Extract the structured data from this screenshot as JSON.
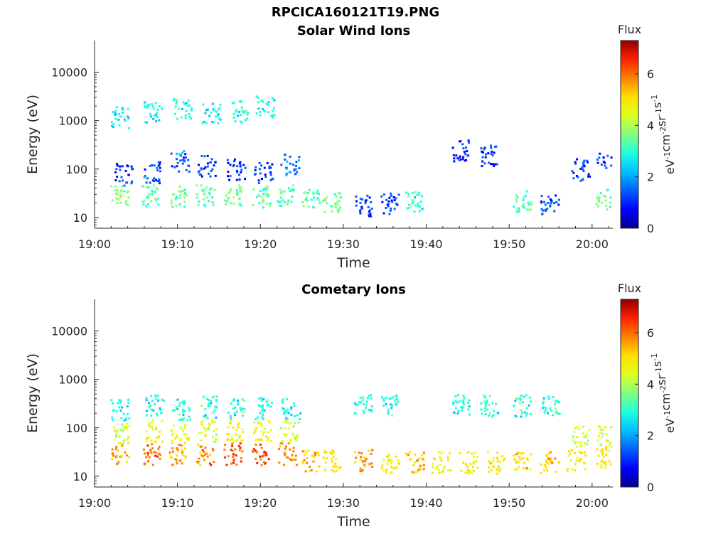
{
  "figure_title": "RPCICA160121T19.PNG",
  "colormap": [
    "#00008f",
    "#0000ff",
    "#0060ff",
    "#00bfff",
    "#20ffdf",
    "#80ff80",
    "#dfff20",
    "#ffdf00",
    "#ff8000",
    "#ff2000",
    "#8f0000"
  ],
  "chart_data": [
    {
      "type": "heatmap",
      "title": "Solar Wind Ions",
      "xlabel": "Time",
      "ylabel": "Energy (eV)",
      "x_ticks": [
        "19:00",
        "19:10",
        "19:20",
        "19:30",
        "19:40",
        "19:50",
        "20:00"
      ],
      "x_range_minutes": [
        0,
        62.5
      ],
      "y_scale": "log",
      "y_ticks": [
        "10",
        "100",
        "1000",
        "10000"
      ],
      "y_range": [
        6,
        45000
      ],
      "colorbar": {
        "title": "Flux",
        "label": "eV-1cm-2sr-1s-1",
        "ticks": [
          "0",
          "2",
          "4",
          "6"
        ],
        "range": [
          0,
          7.3
        ]
      },
      "blocks": [
        {
          "t": 3,
          "e": 30,
          "flux": 3.6
        },
        {
          "t": 3.5,
          "e": 80,
          "flux": 1.2
        },
        {
          "t": 3,
          "e": 1200,
          "flux": 2.6
        },
        {
          "t": 6.5,
          "e": 30,
          "flux": 3.2
        },
        {
          "t": 6.8,
          "e": 90,
          "flux": 1.4
        },
        {
          "t": 7,
          "e": 1500,
          "flux": 2.8
        },
        {
          "t": 10,
          "e": 28,
          "flux": 3.5
        },
        {
          "t": 10.2,
          "e": 150,
          "flux": 1.5
        },
        {
          "t": 10.5,
          "e": 1800,
          "flux": 3.0
        },
        {
          "t": 13.3,
          "e": 30,
          "flux": 3.4
        },
        {
          "t": 13.5,
          "e": 120,
          "flux": 1.3
        },
        {
          "t": 14,
          "e": 1500,
          "flux": 2.7
        },
        {
          "t": 16.6,
          "e": 30,
          "flux": 3.6
        },
        {
          "t": 17,
          "e": 100,
          "flux": 1.1
        },
        {
          "t": 17.5,
          "e": 1600,
          "flux": 2.9
        },
        {
          "t": 20,
          "e": 28,
          "flux": 3.5
        },
        {
          "t": 20.3,
          "e": 90,
          "flux": 1.2
        },
        {
          "t": 20.5,
          "e": 2000,
          "flux": 2.8
        },
        {
          "t": 23,
          "e": 30,
          "flux": 3.3
        },
        {
          "t": 23.5,
          "e": 130,
          "flux": 1.6
        },
        {
          "t": 26,
          "e": 24,
          "flux": 3.2
        },
        {
          "t": 28.5,
          "e": 22,
          "flux": 3.4
        },
        {
          "t": 32.3,
          "e": 18,
          "flux": 1.1
        },
        {
          "t": 35.5,
          "e": 20,
          "flux": 1.2
        },
        {
          "t": 38.5,
          "e": 22,
          "flux": 3.0
        },
        {
          "t": 44,
          "e": 250,
          "flux": 1.0
        },
        {
          "t": 47.5,
          "e": 200,
          "flux": 1.1
        },
        {
          "t": 51.5,
          "e": 22,
          "flux": 3.2
        },
        {
          "t": 54.8,
          "e": 20,
          "flux": 1.3
        },
        {
          "t": 58.5,
          "e": 100,
          "flux": 1.1
        },
        {
          "t": 61.5,
          "e": 150,
          "flux": 1.0
        },
        {
          "t": 61.5,
          "e": 25,
          "flux": 3.5
        }
      ]
    },
    {
      "type": "heatmap",
      "title": "Cometary Ions",
      "xlabel": "Time",
      "ylabel": "Energy (eV)",
      "x_ticks": [
        "19:00",
        "19:10",
        "19:20",
        "19:30",
        "19:40",
        "19:50",
        "20:00"
      ],
      "x_range_minutes": [
        0,
        62.5
      ],
      "y_scale": "log",
      "y_ticks": [
        "10",
        "100",
        "1000",
        "10000"
      ],
      "y_range": [
        6,
        45000
      ],
      "colorbar": {
        "title": "Flux",
        "label": "eV-1cm-2sr-1s-1",
        "ticks": [
          "0",
          "2",
          "4",
          "6"
        ],
        "range": [
          0,
          7.3
        ]
      },
      "blocks": [
        {
          "t": 3,
          "e": 30,
          "flux": 5.6
        },
        {
          "t": 3.2,
          "e": 80,
          "flux": 4.3
        },
        {
          "t": 3,
          "e": 250,
          "flux": 2.8
        },
        {
          "t": 6.8,
          "e": 30,
          "flux": 6.0
        },
        {
          "t": 7,
          "e": 90,
          "flux": 4.5
        },
        {
          "t": 7.2,
          "e": 300,
          "flux": 2.8
        },
        {
          "t": 10,
          "e": 30,
          "flux": 5.5
        },
        {
          "t": 10.2,
          "e": 80,
          "flux": 4.5
        },
        {
          "t": 10.4,
          "e": 250,
          "flux": 2.9
        },
        {
          "t": 13.3,
          "e": 30,
          "flux": 5.8
        },
        {
          "t": 13.5,
          "e": 90,
          "flux": 4.4
        },
        {
          "t": 13.7,
          "e": 280,
          "flux": 3.0
        },
        {
          "t": 16.6,
          "e": 30,
          "flux": 6.1
        },
        {
          "t": 16.8,
          "e": 90,
          "flux": 4.6
        },
        {
          "t": 17,
          "e": 250,
          "flux": 2.9
        },
        {
          "t": 20,
          "e": 30,
          "flux": 6.2
        },
        {
          "t": 20.2,
          "e": 85,
          "flux": 4.6
        },
        {
          "t": 20.4,
          "e": 260,
          "flux": 3.0
        },
        {
          "t": 23.2,
          "e": 30,
          "flux": 5.7
        },
        {
          "t": 23.4,
          "e": 90,
          "flux": 4.3
        },
        {
          "t": 23.6,
          "e": 260,
          "flux": 2.7
        },
        {
          "t": 26,
          "e": 22,
          "flux": 5.2
        },
        {
          "t": 28.5,
          "e": 22,
          "flux": 5.0
        },
        {
          "t": 32.3,
          "e": 22,
          "flux": 5.6
        },
        {
          "t": 35.5,
          "e": 20,
          "flux": 4.8
        },
        {
          "t": 38.5,
          "e": 20,
          "flux": 5.3
        },
        {
          "t": 41.7,
          "e": 20,
          "flux": 4.6
        },
        {
          "t": 45,
          "e": 20,
          "flux": 4.9
        },
        {
          "t": 48.3,
          "e": 20,
          "flux": 5.0
        },
        {
          "t": 51.5,
          "e": 22,
          "flux": 5.1
        },
        {
          "t": 54.8,
          "e": 20,
          "flux": 5.3
        },
        {
          "t": 58,
          "e": 22,
          "flux": 5.0
        },
        {
          "t": 58.5,
          "e": 70,
          "flux": 4.3
        },
        {
          "t": 61.5,
          "e": 25,
          "flux": 5.0
        },
        {
          "t": 61.5,
          "e": 70,
          "flux": 4.4
        },
        {
          "t": 32.3,
          "e": 300,
          "flux": 2.8
        },
        {
          "t": 35.5,
          "e": 300,
          "flux": 2.9
        },
        {
          "t": 44,
          "e": 300,
          "flux": 2.8
        },
        {
          "t": 47.5,
          "e": 300,
          "flux": 3.0
        },
        {
          "t": 51.5,
          "e": 300,
          "flux": 2.9
        },
        {
          "t": 55,
          "e": 300,
          "flux": 3.0
        }
      ]
    }
  ]
}
